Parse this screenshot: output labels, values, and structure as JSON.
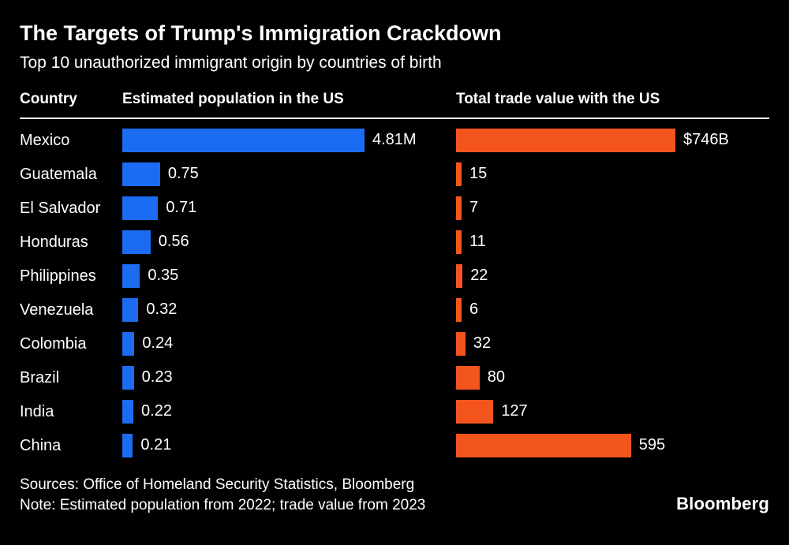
{
  "header": {
    "title": "The Targets of Trump's Immigration Crackdown",
    "subtitle": "Top 10 unauthorized immigrant origin by countries of birth"
  },
  "columns": {
    "country": "Country",
    "population": "Estimated population in the US",
    "trade": "Total trade value with the US"
  },
  "chart_data": {
    "type": "bar",
    "orientation": "horizontal",
    "categories": [
      "Mexico",
      "Guatemala",
      "El Salvador",
      "Honduras",
      "Philippines",
      "Venezuela",
      "Colombia",
      "Brazil",
      "India",
      "China"
    ],
    "series": [
      {
        "name": "Estimated population in the US",
        "unit": "millions of people",
        "values": [
          4.81,
          0.75,
          0.71,
          0.56,
          0.35,
          0.32,
          0.24,
          0.23,
          0.22,
          0.21
        ],
        "labels": [
          "4.81M",
          "0.75",
          "0.71",
          "0.56",
          "0.35",
          "0.32",
          "0.24",
          "0.23",
          "0.22",
          "0.21"
        ],
        "color": "#1c6cf2",
        "xlim": [
          0,
          4.81
        ]
      },
      {
        "name": "Total trade value with the US",
        "unit": "billions USD",
        "values": [
          746,
          15,
          7,
          11,
          22,
          6,
          32,
          80,
          127,
          595
        ],
        "labels": [
          "$746B",
          "15",
          "7",
          "11",
          "22",
          "6",
          "32",
          "80",
          "127",
          "595"
        ],
        "color": "#f4551f",
        "xlim": [
          0,
          746
        ]
      }
    ],
    "grid": false,
    "legend": "none (column headers act as series labels)"
  },
  "footer": {
    "sources": "Sources: Office of Homeland Security Statistics, Bloomberg",
    "note": "Note: Estimated population from 2022; trade value from 2023",
    "brand": "Bloomberg"
  }
}
